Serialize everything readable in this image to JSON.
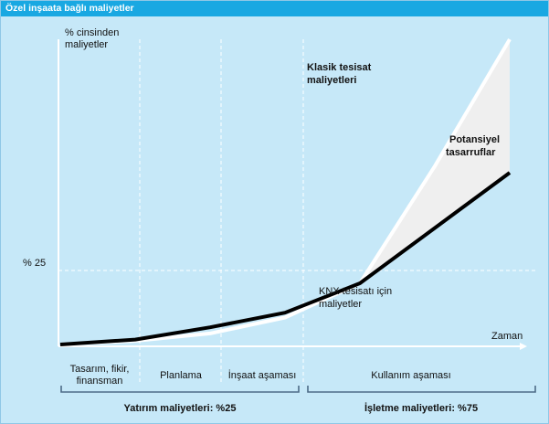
{
  "header": {
    "title": "Özel inşaata bağlı maliyetler"
  },
  "colors": {
    "background": "#c6e8f8",
    "title_bar": "#19a8e2",
    "classic_line": "#ffffff",
    "knx_line": "#000000",
    "savings_area": "#efefef"
  },
  "chart_data": {
    "type": "line",
    "ylabel": [
      "% cinsinden",
      "maliyetler"
    ],
    "xlabel": "Zaman",
    "ytick": "% 25",
    "x": [
      0,
      1,
      2,
      3,
      4,
      5,
      6
    ],
    "series": [
      {
        "key": "classic",
        "values": [
          0,
          1.5,
          4.5,
          11,
          25,
          61,
          100
        ]
      },
      {
        "key": "knx",
        "values": [
          0,
          2,
          7,
          13,
          25,
          42,
          59
        ]
      }
    ],
    "xlim": [
      0,
      6
    ],
    "ylim": [
      0,
      100
    ],
    "annotations": {
      "classic": [
        "Klasik tesisat",
        "maliyetleri"
      ],
      "savings": [
        "Potansiyel",
        "tasarruflar"
      ],
      "knx": [
        "KNX tesisatı için",
        "maliyetler"
      ]
    },
    "phases": [
      {
        "label_lines": [
          "Tasarım, fikir,",
          "finansman"
        ]
      },
      {
        "label_lines": [
          "Planlama"
        ]
      },
      {
        "label_lines": [
          "İnşaat aşaması"
        ]
      },
      {
        "label_lines": [
          "Kullanım aşaması"
        ]
      }
    ],
    "groups": [
      {
        "label": "Yatırım maliyetleri: %25"
      },
      {
        "label": "İşletme maliyetleri: %75"
      }
    ]
  }
}
